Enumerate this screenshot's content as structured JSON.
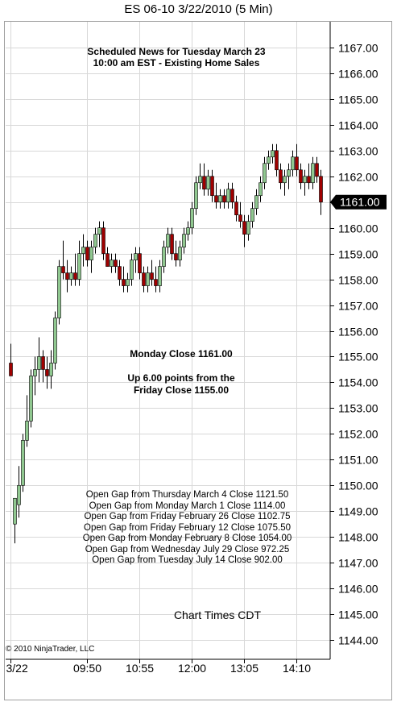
{
  "title": "ES 06-10  3/22/2010 (5 Min)",
  "copyright": "© 2010 NinjaTrader, LLC",
  "annotations": {
    "news_line1": "Scheduled News for Tuesday March 23",
    "news_line2": "10:00 am EST - Existing Home Sales",
    "close_line": "Monday Close 1161.00",
    "up_line1": "Up 6.00 points from the",
    "up_line2": "Friday Close 1155.00",
    "gaps": [
      "Open Gap from Thursday March 4 Close 1121.50",
      "Open Gap from Monday March 1 Close 1114.00",
      "Open Gap from Friday February 26 Close 1102.75",
      "Open Gap from Friday February 12 Close 1075.50",
      "Open Gap from Monday February 8 Close 1054.00",
      "Open Gap from Wednesday July 29 Close 972.25",
      "Open Gap from Tuesday July 14 Close 902.00"
    ],
    "timezone": "Chart Times CDT"
  },
  "colors": {
    "up": "#90c890",
    "down": "#a00000",
    "wick": "#000000",
    "grid": "#d8d8d8",
    "price_tag_bg": "#000000",
    "price_tag_fg": "#ffffff"
  },
  "chart_data": {
    "type": "candlestick",
    "ylim": [
      1143.25,
      1168.0
    ],
    "yticks": [
      "1144.00",
      "1145.00",
      "1146.00",
      "1147.00",
      "1148.00",
      "1149.00",
      "1150.00",
      "1151.00",
      "1152.00",
      "1153.00",
      "1154.00",
      "1155.00",
      "1156.00",
      "1157.00",
      "1158.00",
      "1159.00",
      "1160.00",
      "1161.00",
      "1162.00",
      "1163.00",
      "1164.00",
      "1165.00",
      "1166.00",
      "1167.00"
    ],
    "last_price": "1161.00",
    "xtick_labels": [
      {
        "label": "3/22",
        "bar": 0
      },
      {
        "label": "09:50",
        "bar": 19
      },
      {
        "label": "10:55",
        "bar": 32
      },
      {
        "label": "12:00",
        "bar": 45
      },
      {
        "label": "13:05",
        "bar": 58
      },
      {
        "label": "14:10",
        "bar": 71
      }
    ],
    "ohlc": [
      [
        1154.75,
        1155.5,
        1154.25,
        1154.25
      ],
      [
        1148.5,
        1149.5,
        1147.75,
        1149.5
      ],
      [
        1149.25,
        1150.75,
        1148.75,
        1150.0
      ],
      [
        1150.0,
        1152.0,
        1149.75,
        1151.75
      ],
      [
        1151.75,
        1153.5,
        1151.5,
        1152.5
      ],
      [
        1152.5,
        1154.5,
        1152.25,
        1154.25
      ],
      [
        1154.25,
        1155.0,
        1153.5,
        1154.5
      ],
      [
        1154.5,
        1155.75,
        1154.0,
        1155.0
      ],
      [
        1155.0,
        1155.25,
        1154.0,
        1154.5
      ],
      [
        1154.5,
        1155.0,
        1153.75,
        1154.25
      ],
      [
        1154.25,
        1155.25,
        1153.75,
        1154.75
      ],
      [
        1154.75,
        1156.75,
        1154.5,
        1156.5
      ],
      [
        1156.5,
        1158.75,
        1156.25,
        1158.5
      ],
      [
        1158.5,
        1159.5,
        1158.0,
        1158.25
      ],
      [
        1158.25,
        1158.75,
        1157.5,
        1158.0
      ],
      [
        1158.0,
        1158.5,
        1157.75,
        1158.25
      ],
      [
        1158.25,
        1159.0,
        1157.75,
        1158.0
      ],
      [
        1158.0,
        1159.5,
        1157.75,
        1159.0
      ],
      [
        1159.0,
        1159.75,
        1158.5,
        1159.25
      ],
      [
        1159.25,
        1159.5,
        1158.5,
        1158.75
      ],
      [
        1158.75,
        1159.5,
        1158.25,
        1159.25
      ],
      [
        1159.25,
        1160.0,
        1159.0,
        1159.75
      ],
      [
        1159.75,
        1160.25,
        1159.25,
        1160.0
      ],
      [
        1160.0,
        1160.25,
        1158.75,
        1159.0
      ],
      [
        1159.0,
        1159.25,
        1158.5,
        1158.5
      ],
      [
        1158.5,
        1159.0,
        1158.25,
        1158.75
      ],
      [
        1158.75,
        1159.0,
        1158.25,
        1158.5
      ],
      [
        1158.5,
        1158.75,
        1157.75,
        1158.0
      ],
      [
        1158.0,
        1158.5,
        1157.5,
        1157.75
      ],
      [
        1157.75,
        1158.25,
        1157.5,
        1158.0
      ],
      [
        1158.0,
        1159.0,
        1157.75,
        1158.75
      ],
      [
        1158.75,
        1159.25,
        1158.25,
        1159.0
      ],
      [
        1159.0,
        1159.25,
        1158.0,
        1158.25
      ],
      [
        1158.25,
        1158.5,
        1157.5,
        1157.75
      ],
      [
        1157.75,
        1158.5,
        1157.5,
        1158.25
      ],
      [
        1158.25,
        1158.75,
        1157.75,
        1158.0
      ],
      [
        1158.0,
        1158.5,
        1157.5,
        1157.75
      ],
      [
        1157.75,
        1158.75,
        1157.5,
        1158.5
      ],
      [
        1158.5,
        1159.5,
        1158.25,
        1159.25
      ],
      [
        1159.25,
        1160.0,
        1159.0,
        1159.75
      ],
      [
        1159.75,
        1160.0,
        1158.75,
        1159.0
      ],
      [
        1159.0,
        1159.5,
        1158.5,
        1158.75
      ],
      [
        1158.75,
        1159.5,
        1158.5,
        1159.25
      ],
      [
        1159.25,
        1160.0,
        1159.0,
        1159.75
      ],
      [
        1159.75,
        1160.25,
        1159.5,
        1160.0
      ],
      [
        1160.0,
        1161.0,
        1159.75,
        1160.75
      ],
      [
        1160.75,
        1162.0,
        1160.5,
        1161.75
      ],
      [
        1161.75,
        1162.5,
        1161.5,
        1162.0
      ],
      [
        1162.0,
        1162.5,
        1161.25,
        1161.5
      ],
      [
        1161.5,
        1162.25,
        1161.25,
        1162.0
      ],
      [
        1162.0,
        1162.25,
        1161.0,
        1161.25
      ],
      [
        1161.25,
        1161.75,
        1160.75,
        1161.0
      ],
      [
        1161.0,
        1161.5,
        1160.75,
        1161.25
      ],
      [
        1161.25,
        1161.5,
        1160.75,
        1161.0
      ],
      [
        1161.0,
        1161.75,
        1160.75,
        1161.5
      ],
      [
        1161.5,
        1161.75,
        1160.75,
        1161.0
      ],
      [
        1161.0,
        1161.25,
        1160.25,
        1160.5
      ],
      [
        1160.5,
        1161.0,
        1160.0,
        1160.25
      ],
      [
        1160.25,
        1160.5,
        1159.25,
        1159.75
      ],
      [
        1159.75,
        1160.5,
        1159.5,
        1160.25
      ],
      [
        1160.25,
        1161.0,
        1160.0,
        1160.75
      ],
      [
        1160.75,
        1161.5,
        1160.5,
        1161.25
      ],
      [
        1161.25,
        1162.0,
        1161.0,
        1161.75
      ],
      [
        1161.75,
        1162.75,
        1161.5,
        1162.5
      ],
      [
        1162.5,
        1163.0,
        1162.25,
        1162.75
      ],
      [
        1162.75,
        1163.25,
        1162.5,
        1163.0
      ],
      [
        1163.0,
        1163.25,
        1162.0,
        1162.25
      ],
      [
        1162.25,
        1162.5,
        1161.5,
        1161.75
      ],
      [
        1161.75,
        1162.25,
        1161.25,
        1162.0
      ],
      [
        1162.0,
        1162.5,
        1161.5,
        1162.25
      ],
      [
        1162.25,
        1163.0,
        1162.0,
        1162.75
      ],
      [
        1162.75,
        1163.25,
        1162.0,
        1162.25
      ],
      [
        1162.25,
        1162.5,
        1161.5,
        1161.75
      ],
      [
        1161.75,
        1162.25,
        1161.25,
        1162.0
      ],
      [
        1162.0,
        1162.5,
        1161.5,
        1161.75
      ],
      [
        1161.75,
        1162.75,
        1161.5,
        1162.5
      ],
      [
        1162.5,
        1162.75,
        1161.75,
        1162.0
      ],
      [
        1162.0,
        1162.25,
        1160.5,
        1161.0
      ]
    ]
  }
}
